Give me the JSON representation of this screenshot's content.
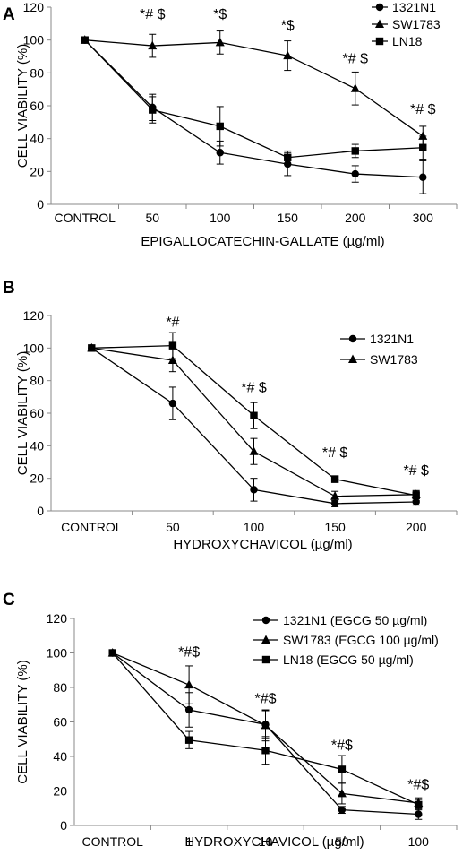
{
  "chart_data": [
    {
      "panel_label": "A",
      "type": "line",
      "categories": [
        "CONTROL",
        "50",
        "100",
        "150",
        "200",
        "300"
      ],
      "xlabel": "EPIGALLOCATECHIN-GALLATE (µg/ml)",
      "ylabel": "CELL VIABILITY (%)",
      "ylim": [
        0,
        120
      ],
      "yticks": [
        "0",
        "20",
        "40",
        "60",
        "80",
        "100",
        "120"
      ],
      "legend_position": "top-right",
      "series": [
        {
          "name": "1321N1",
          "marker": "circle",
          "values": [
            100,
            59,
            31.5,
            24.5,
            18.5,
            16.5
          ],
          "errors": [
            0,
            8,
            7,
            7,
            5,
            10
          ]
        },
        {
          "name": "SW1783",
          "marker": "triangle",
          "values": [
            100,
            96.5,
            98.5,
            90.5,
            70.5,
            41.5
          ],
          "errors": [
            0,
            7,
            7,
            9,
            10,
            6
          ]
        },
        {
          "name": "LN18",
          "marker": "square",
          "values": [
            100,
            57.5,
            47.5,
            28.5,
            32.5,
            34.5
          ],
          "errors": [
            0,
            8,
            12,
            4,
            4,
            7
          ]
        }
      ],
      "annotations": [
        {
          "category": "50",
          "text": "*# $",
          "y": 113
        },
        {
          "category": "100",
          "text": "*$",
          "y": 113
        },
        {
          "category": "150",
          "text": "*$",
          "y": 106
        },
        {
          "category": "200",
          "text": "*# $",
          "y": 86
        },
        {
          "category": "300",
          "text": "*# $",
          "y": 55
        }
      ]
    },
    {
      "panel_label": "B",
      "type": "line",
      "categories": [
        "CONTROL",
        "50",
        "100",
        "150",
        "200"
      ],
      "xlabel": "HYDROXYCHAVICOL (µg/ml)",
      "ylabel": "CELL VIABILITY (%)",
      "ylim": [
        0,
        120
      ],
      "yticks": [
        "0",
        "20",
        "40",
        "60",
        "80",
        "100",
        "120"
      ],
      "legend_position": "top-right",
      "series": [
        {
          "name": "1321N1",
          "marker": "circle",
          "values": [
            100,
            66,
            13,
            4.5,
            5.5
          ],
          "errors": [
            0,
            10,
            7,
            2,
            2
          ]
        },
        {
          "name": "SW1783",
          "marker": "triangle",
          "values": [
            100,
            92.5,
            36.5,
            9,
            10
          ],
          "errors": [
            0,
            7,
            8,
            3,
            2
          ]
        },
        {
          "name": "",
          "marker": "square",
          "values": [
            100,
            101.5,
            58.5,
            19.5,
            9.5
          ],
          "errors": [
            0,
            8,
            8,
            2,
            3
          ]
        }
      ],
      "annotations": [
        {
          "category": "50",
          "text": "*#",
          "y": 113
        },
        {
          "category": "100",
          "text": "*# $",
          "y": 73
        },
        {
          "category": "150",
          "text": "*# $",
          "y": 33
        },
        {
          "category": "200",
          "text": "*# $",
          "y": 22
        }
      ]
    },
    {
      "panel_label": "C",
      "type": "line",
      "categories": [
        "CONTROL",
        "1",
        "10",
        "50",
        "100"
      ],
      "xlabel": "HYDROXYCHAVICOL (µg/ml)",
      "ylabel": "CELL VIABILITY (%)",
      "ylim": [
        0,
        120
      ],
      "yticks": [
        "0",
        "20",
        "40",
        "60",
        "80",
        "100",
        "120"
      ],
      "legend_position": "top-right",
      "series": [
        {
          "name": "1321N1 (EGCG 50 µg/ml)",
          "marker": "circle",
          "values": [
            100,
            67,
            58.5,
            9,
            6.5
          ],
          "errors": [
            0,
            10,
            8,
            2,
            3
          ]
        },
        {
          "name": "SW1783 (EGCG 100 µg/ml)",
          "marker": "triangle",
          "values": [
            100,
            81.5,
            58,
            18.5,
            13
          ],
          "errors": [
            0,
            11,
            9,
            6,
            3
          ]
        },
        {
          "name": "LN18 (EGCG 50 µg/ml)",
          "marker": "square",
          "values": [
            100,
            49.5,
            43.5,
            32.5,
            12
          ],
          "errors": [
            0,
            5,
            8,
            8,
            3
          ]
        }
      ],
      "annotations": [
        {
          "category": "1",
          "text": "*#$",
          "y": 98
        },
        {
          "category": "10",
          "text": "*#$",
          "y": 71
        },
        {
          "category": "50",
          "text": "*#$",
          "y": 44
        },
        {
          "category": "100",
          "text": "*#$",
          "y": 21
        }
      ]
    }
  ]
}
